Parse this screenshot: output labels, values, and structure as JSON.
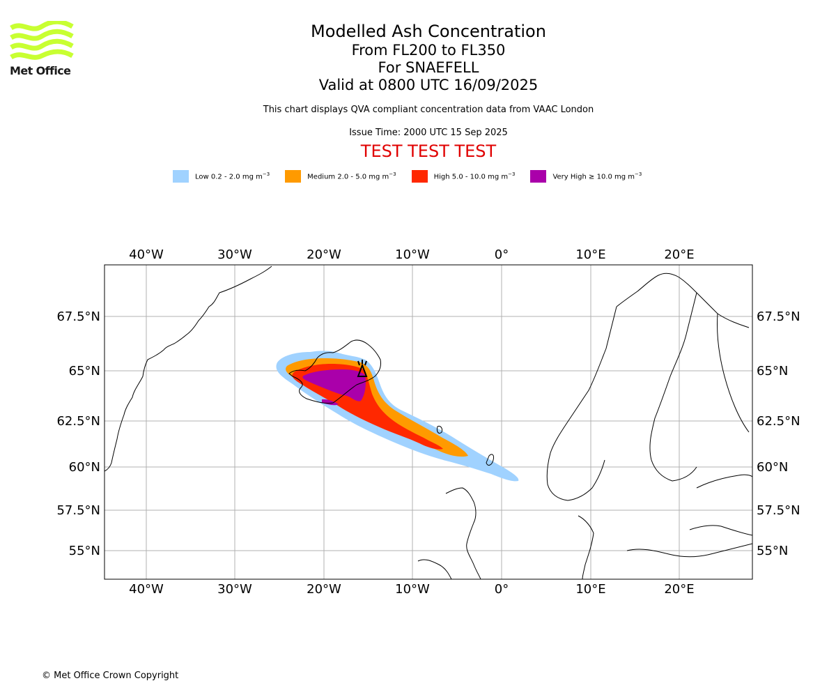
{
  "header": {
    "logo_text": "Met Office",
    "title": "Modelled Ash Concentration",
    "levels": "From FL200 to FL350",
    "volcano": "For SNAEFELL",
    "valid": "Valid at 0800 UTC 16/09/2025",
    "description": "This chart displays QVA compliant concentration data from VAAC London",
    "issue_time": "Issue Time: 2000 UTC 15 Sep 2025",
    "test_banner": "TEST TEST TEST"
  },
  "legend": [
    {
      "label": "Low 0.2 - 2.0 mg m",
      "color": "#a0d2ff"
    },
    {
      "label": "Medium 2.0 - 5.0 mg m",
      "color": "#ff9a00"
    },
    {
      "label": "High 5.0 - 10.0 mg m",
      "color": "#ff2800"
    },
    {
      "label": "Very High ≥ 10.0 mg m",
      "color": "#aa00aa"
    }
  ],
  "legend_unit_exponent": "−3",
  "map": {
    "lon_ticks": [
      "40°W",
      "30°W",
      "20°W",
      "10°W",
      "0°",
      "10°E",
      "20°E"
    ],
    "lat_ticks": [
      "67.5°N",
      "65°N",
      "62.5°N",
      "60°N",
      "57.5°N",
      "55°N"
    ],
    "lon_range": [
      -44.7,
      28
    ],
    "lat_range": [
      53.6,
      69.9
    ],
    "grid": true
  },
  "footer": {
    "copyright": "© Met Office Crown Copyright"
  }
}
